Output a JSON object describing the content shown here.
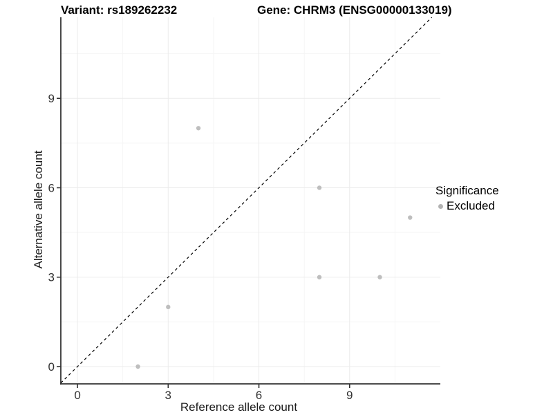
{
  "header": {
    "variant_title": "Variant: rs189262232",
    "gene_title": "Gene: CHRM3 (ENSG00000133019)"
  },
  "chart_data": {
    "type": "scatter",
    "title_left": "Variant: rs189262232",
    "title_right": "Gene: CHRM3 (ENSG00000133019)",
    "xlabel": "Reference allele count",
    "ylabel": "Alternative allele count",
    "x_ticks": [
      0,
      3,
      6,
      9
    ],
    "y_ticks": [
      0,
      3,
      6,
      9
    ],
    "x_minor_ticks": [
      1.5,
      4.5,
      7.5,
      10.5
    ],
    "y_minor_ticks": [
      1.5,
      4.5,
      7.5,
      10.5
    ],
    "xlim": [
      -0.55,
      12.0
    ],
    "ylim": [
      -0.58,
      11.72
    ],
    "grid": "on",
    "legend_position": "right",
    "series": [
      {
        "name": "Excluded",
        "points": [
          {
            "x": 4,
            "y": 8
          },
          {
            "x": 8,
            "y": 6
          },
          {
            "x": 11,
            "y": 5
          },
          {
            "x": 8,
            "y": 3
          },
          {
            "x": 10,
            "y": 3
          },
          {
            "x": 3,
            "y": 2
          },
          {
            "x": 2,
            "y": 0
          }
        ]
      }
    ],
    "identity_line": {
      "style": "dashed",
      "slope": 1,
      "intercept": 0
    }
  },
  "legend": {
    "title": "Significance",
    "entries": [
      {
        "label": "Excluded",
        "color": "#bebebe"
      }
    ]
  },
  "colors": {
    "point": "#bebebe",
    "axis_line": "#333333",
    "tick_label": "#333333",
    "grid_major": "#ebebeb",
    "grid_minor": "#f5f5f5",
    "identity_line": "#000000",
    "background": "#ffffff"
  }
}
